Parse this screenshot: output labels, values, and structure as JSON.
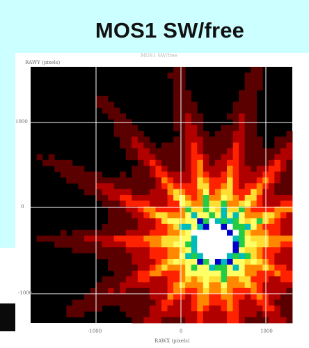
{
  "title": "MOS1 SW/free",
  "plot": {
    "subtitle": "MOS1 SW/free",
    "ylabel": "RAWY (pixels)",
    "xlabel": "RAWX (pixels)",
    "x_ticks": [
      "-1000",
      "0",
      "1000"
    ],
    "y_ticks": [
      "1000",
      "0",
      "-1000"
    ]
  },
  "colors": {
    "page_background": "#ccffff",
    "plot_background": "#000000",
    "grid": "#ffffff",
    "colormap": [
      "#000000",
      "#5a0000",
      "#b00000",
      "#ff2200",
      "#ff8800",
      "#ffdd33",
      "#ffff66",
      "#22cc44",
      "#00bbbb",
      "#0000cc",
      "#ffffff"
    ]
  }
}
